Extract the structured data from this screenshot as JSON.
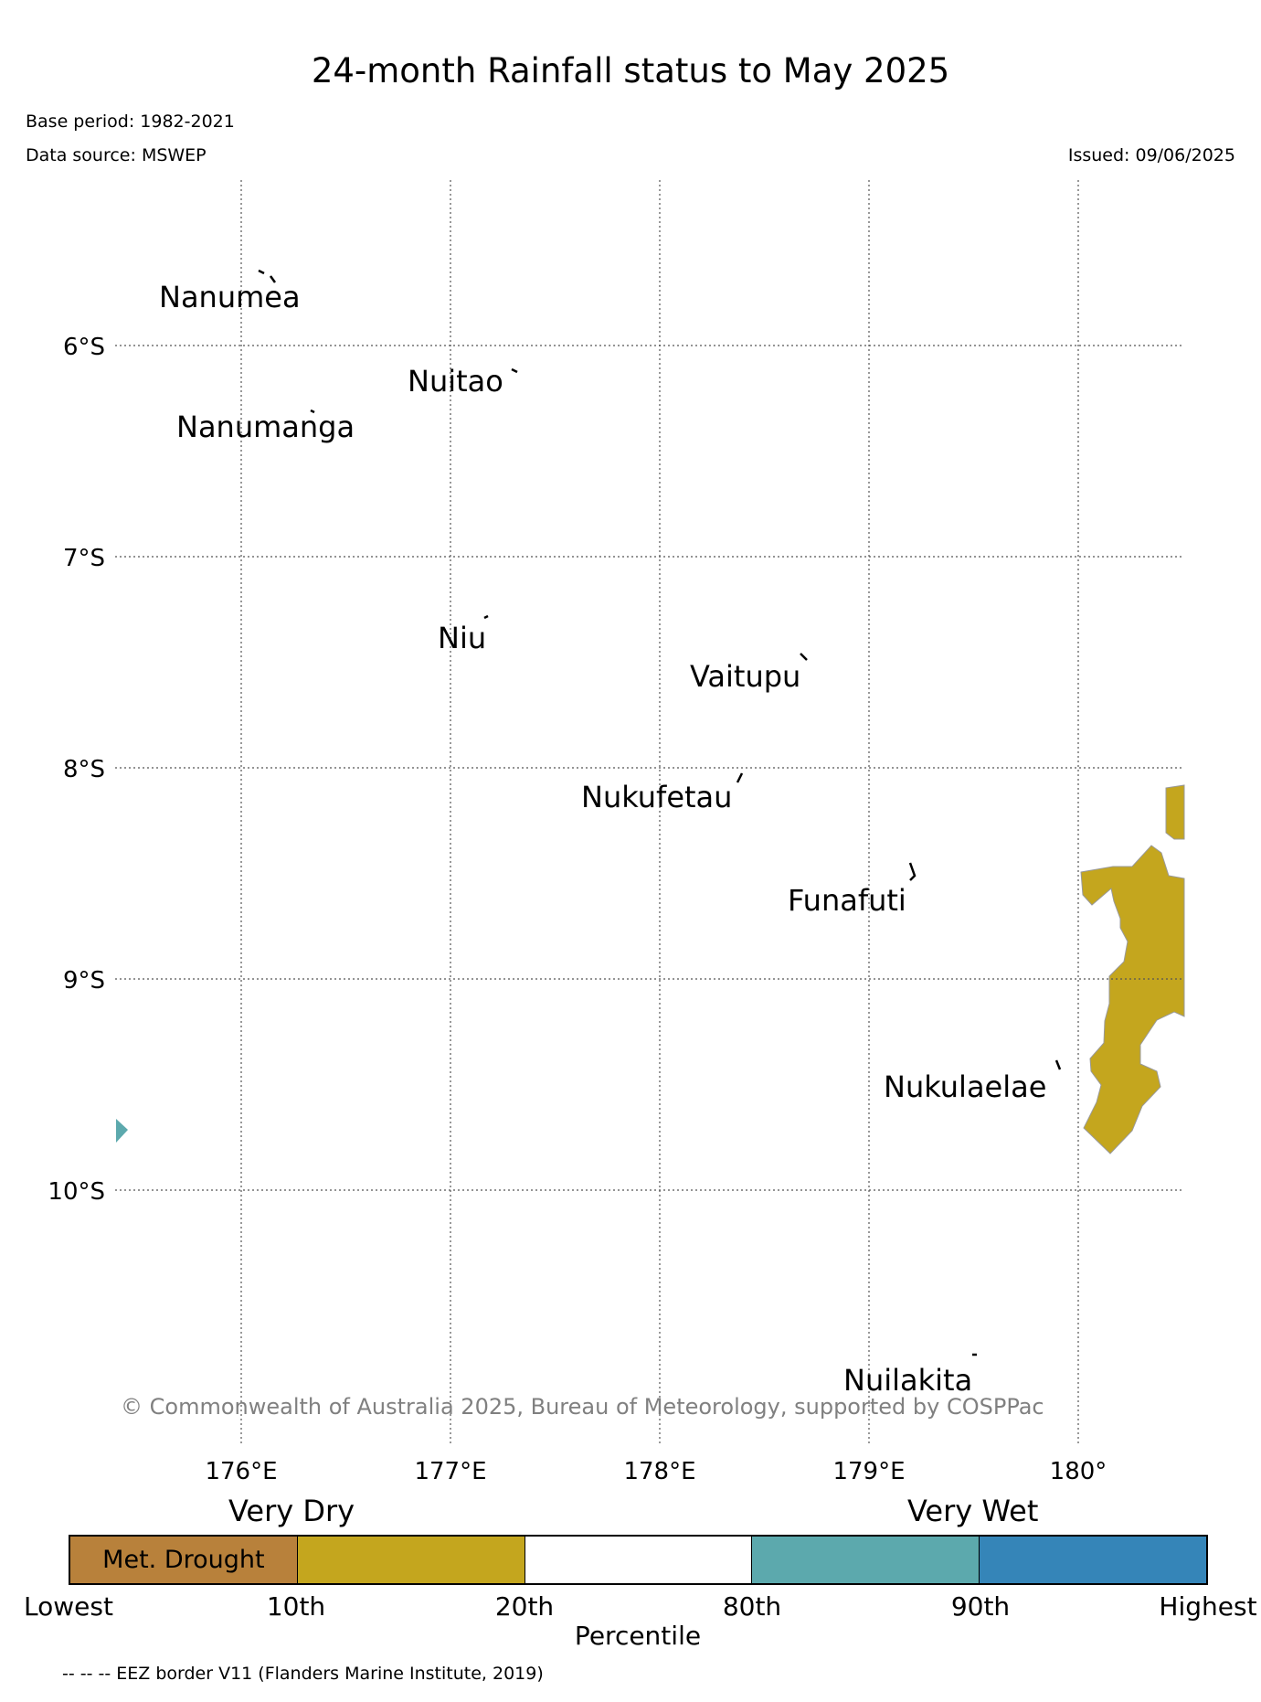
{
  "title": "24-month Rainfall status to May 2025",
  "base_period": "Base period: 1982-2021",
  "data_source": "Data source: MSWEP",
  "issued": "Issued: 09/06/2025",
  "copyright": "© Commonwealth of Australia 2025, Bureau of Meteorology, supported by COSPPac",
  "footnote": "-- -- -- EEZ border V11 (Flanders Marine Institute, 2019)",
  "axes": {
    "lat_labels": [
      "6°S",
      "7°S",
      "8°S",
      "9°S",
      "10°S"
    ],
    "lon_labels": [
      "176°E",
      "177°E",
      "178°E",
      "179°E",
      "180°"
    ]
  },
  "islands": [
    {
      "name": "Nanumea"
    },
    {
      "name": "Nuitao"
    },
    {
      "name": "Nanumanga"
    },
    {
      "name": "Niu"
    },
    {
      "name": "Vaitupu"
    },
    {
      "name": "Nukufetau"
    },
    {
      "name": "Funafuti"
    },
    {
      "name": "Nukulaelae"
    },
    {
      "name": "Nuilakita"
    }
  ],
  "legend": {
    "left_label": "Very Dry",
    "right_label": "Very Wet",
    "drought_label": "Met. Drought",
    "colors": [
      "#b8813b",
      "#c4a61e",
      "#ffffff",
      "#5ca9ad",
      "#3585b8"
    ],
    "ticks": [
      "Lowest",
      "10th",
      "20th",
      "80th",
      "90th",
      "Highest"
    ],
    "axis_label": "Percentile"
  },
  "rainfall_colors": {
    "dry": "#c4a61e",
    "wet": "#5ca9ad"
  }
}
